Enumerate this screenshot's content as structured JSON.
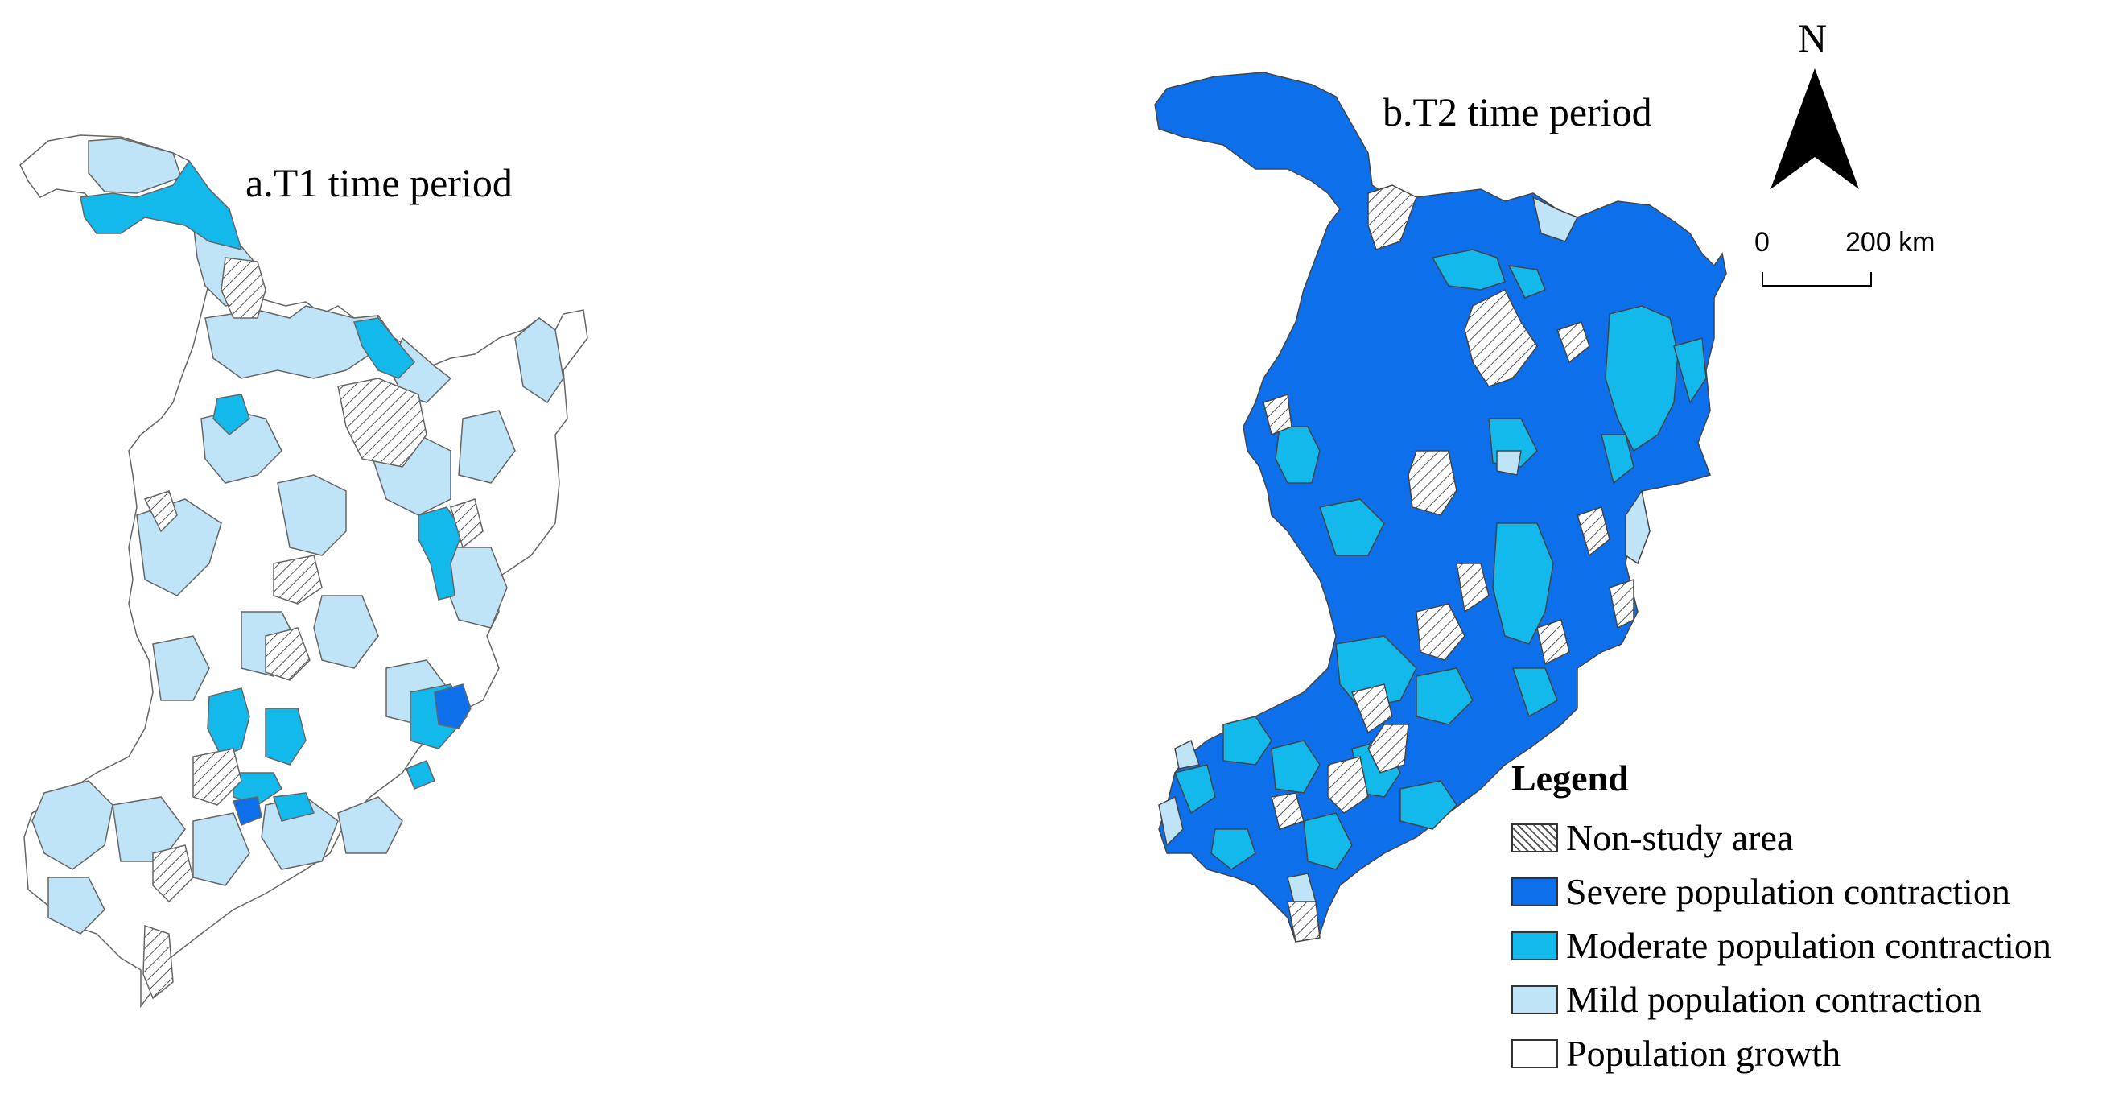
{
  "maps": [
    {
      "title": "a.T1 time period"
    },
    {
      "title": "b.T2 time period"
    }
  ],
  "north_arrow": {
    "label": "N"
  },
  "scale_bar": {
    "start": "0",
    "end": "200 km"
  },
  "legend": {
    "title": "Legend",
    "items": [
      {
        "label": "Non-study area",
        "pattern": "hatched",
        "color": "#ffffff"
      },
      {
        "label": "Severe population contraction",
        "color": "#0d6fea"
      },
      {
        "label": "Moderate population contraction",
        "color": "#14b9ec"
      },
      {
        "label": "Mild population contraction",
        "color": "#bfe3f7"
      },
      {
        "label": "Population growth",
        "color": "#ffffff"
      }
    ]
  }
}
